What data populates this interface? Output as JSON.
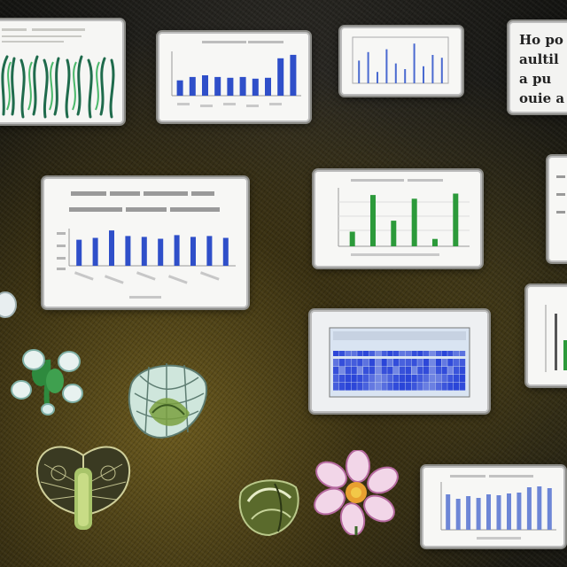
{
  "scene": {
    "description_tag": "collage of chart cards and botanical illustrations on dark textured ground",
    "colors": {
      "card_bg": "#f3f3f1",
      "bar_blue": "#2f4fc9",
      "bar_green": "#2c9a3a",
      "heat_blue": "#2a45d8",
      "plant_green": "#2e8a3e",
      "flower_pink": "#e7a0c8",
      "ground_dark": "#1a1914",
      "ground_gold": "#6b5a1e"
    }
  },
  "cards": [
    {
      "id": "plant-strip-card",
      "kind": "illustration",
      "icon": "seaweed-fronds"
    },
    {
      "id": "bar-card-top",
      "kind": "bar",
      "values": [
        18,
        22,
        24,
        22,
        21,
        22,
        20,
        21,
        44,
        48
      ]
    },
    {
      "id": "bar-card-thin",
      "kind": "bar",
      "values": [
        40,
        55,
        20,
        60,
        35,
        25,
        70,
        30,
        50,
        45
      ]
    },
    {
      "id": "text-card",
      "kind": "text",
      "lines": [
        "Ho po",
        "aultil",
        "a  pu",
        "ouie a"
      ]
    },
    {
      "id": "bar-card-main",
      "kind": "bar",
      "values": [
        28,
        30,
        38,
        32,
        31,
        29,
        33,
        31,
        32,
        30
      ]
    },
    {
      "id": "bar-card-green",
      "kind": "bar",
      "values": [
        20,
        70,
        35,
        65,
        10,
        72
      ]
    },
    {
      "id": "heatmap-card",
      "kind": "heatmap"
    },
    {
      "id": "bar-card-bottom",
      "kind": "bar",
      "values": [
        40,
        35,
        38,
        36,
        40,
        39,
        41,
        42,
        48,
        49,
        47
      ]
    }
  ],
  "illustrations": [
    {
      "id": "white-bud-plant",
      "icon": "white-flower-plant-icon"
    },
    {
      "id": "green-pod",
      "icon": "seed-pod-icon"
    },
    {
      "id": "lacy-moth",
      "icon": "moth-icon"
    },
    {
      "id": "green-bud",
      "icon": "green-bud-icon"
    },
    {
      "id": "pink-flower",
      "icon": "pink-flower-icon"
    }
  ]
}
